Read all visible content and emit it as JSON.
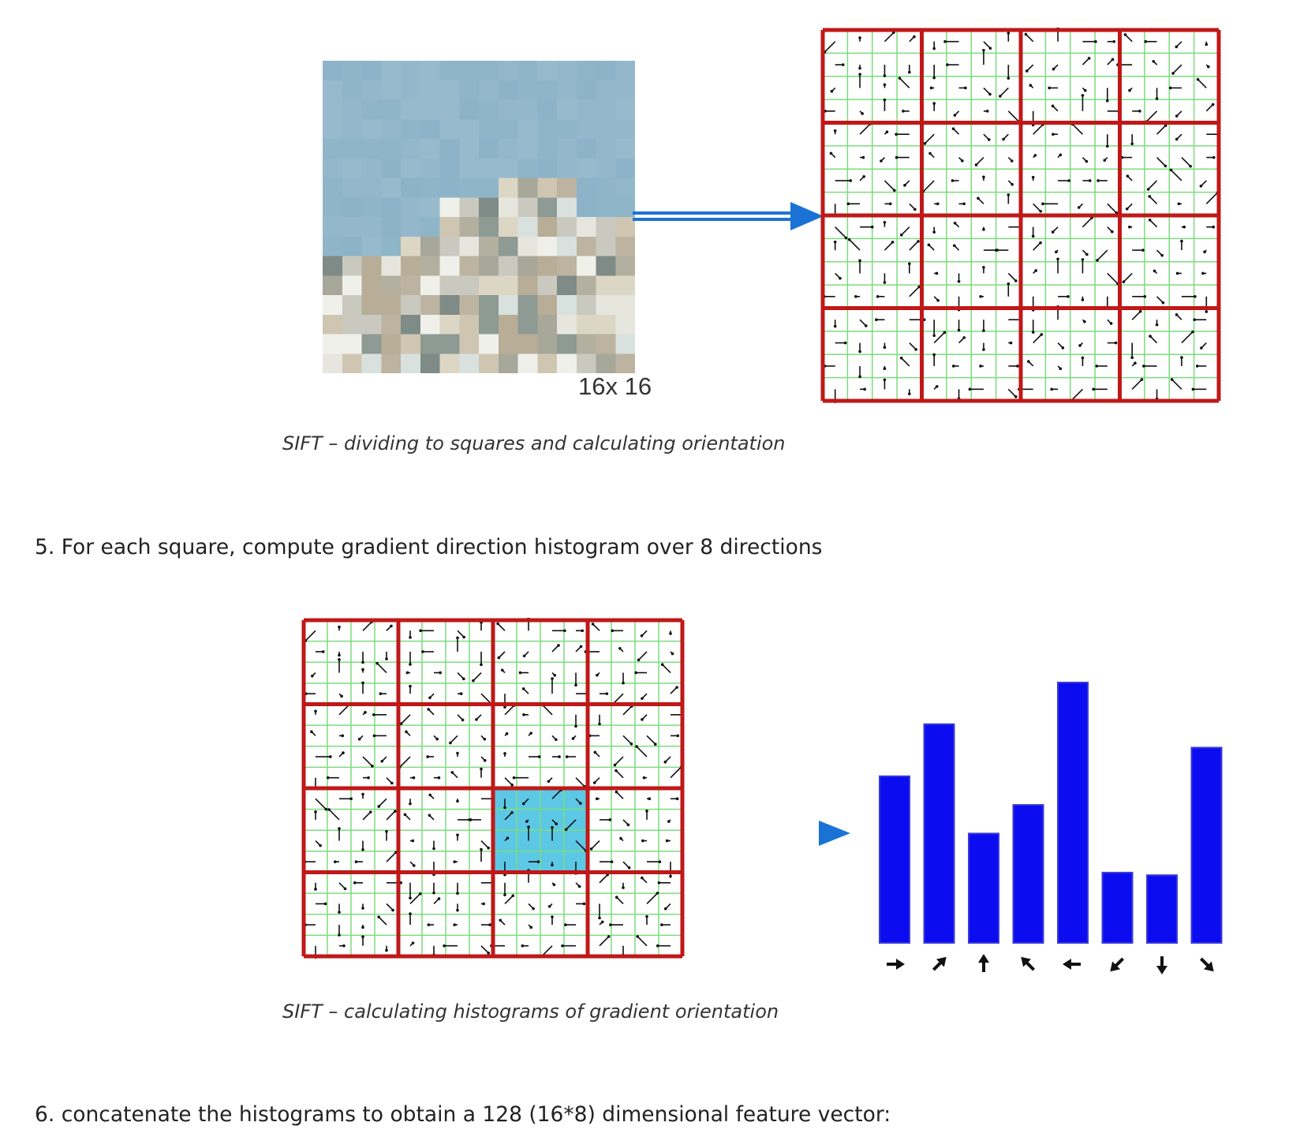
{
  "figure1": {
    "patch_label": "16x 16",
    "caption": "SIFT – dividing to squares and calculating orientation"
  },
  "step5": {
    "text": "5. For each square, compute gradient direction histogram over 8 directions"
  },
  "figure2": {
    "caption": "SIFT – calculating histograms of gradient orientation",
    "highlight_cell": {
      "row": 2,
      "col": 2
    }
  },
  "step6": {
    "text": "6. concatenate the histograms to obtain a 128 (16*8) dimensional feature vector:"
  },
  "colors": {
    "grid_red": "#c01818",
    "grid_green": "#7ddc7d",
    "arrow_blue": "#1a73d4",
    "bar_blue": "#0c0cf0",
    "highlight": "#5cc8e6"
  },
  "chart_data": {
    "type": "bar",
    "categories": [
      "right",
      "up-right",
      "up",
      "up-left",
      "left",
      "down-left",
      "down",
      "down-right"
    ],
    "values": [
      0.64,
      0.84,
      0.42,
      0.53,
      1.0,
      0.27,
      0.26,
      0.75
    ],
    "title": "",
    "xlabel": "",
    "ylabel": "",
    "ylim": [
      0,
      1
    ]
  }
}
